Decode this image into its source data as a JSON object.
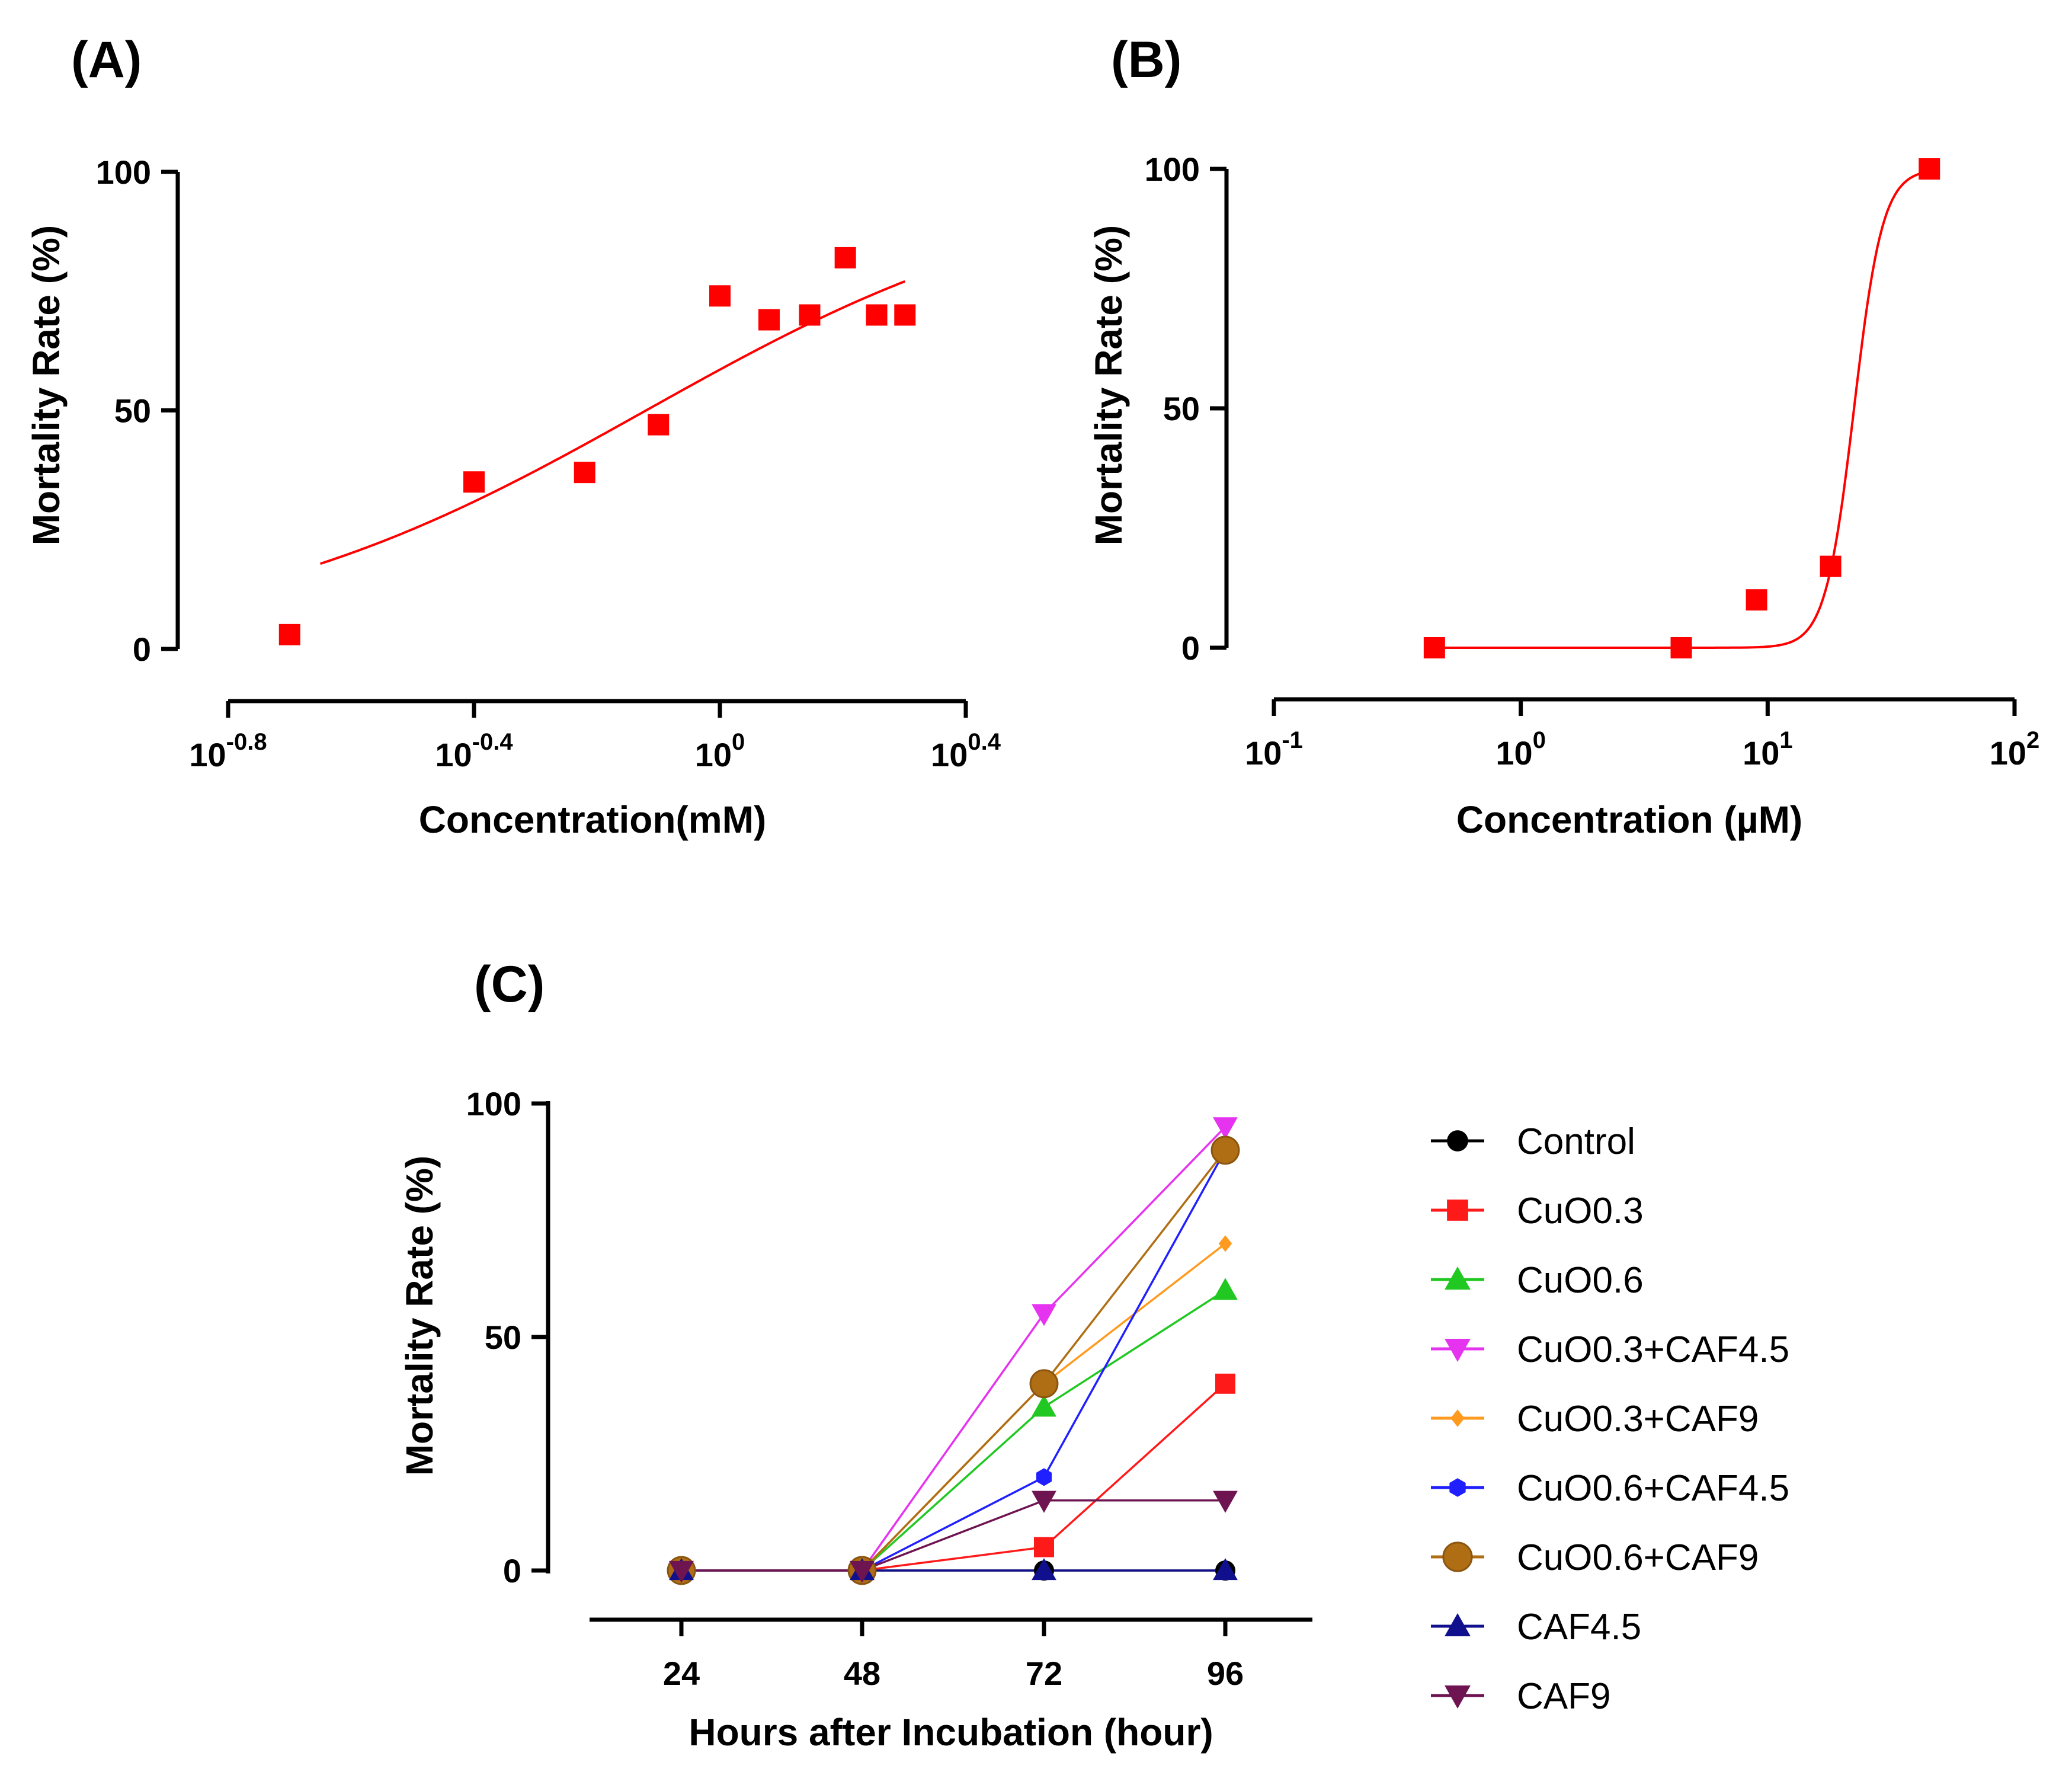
{
  "panels": [
    {
      "label": "(A)",
      "ylabel": "Mortality Rate (%)",
      "xlabel": "Concentration(mM)",
      "xscale": "log10",
      "xlim_log": [
        -0.8,
        0.4
      ],
      "ylim": [
        0,
        100
      ],
      "y_ticks": [
        {
          "value": 0,
          "label": "0"
        },
        {
          "value": 50,
          "label": "50"
        },
        {
          "value": 100,
          "label": "100"
        }
      ],
      "x_ticks": [
        {
          "exp": -0.8,
          "base": "10",
          "sup": "-0.8"
        },
        {
          "exp": -0.4,
          "base": "10",
          "sup": "-0.4"
        },
        {
          "exp": 0,
          "base": "10",
          "sup": "0"
        },
        {
          "exp": 0.4,
          "base": "10",
          "sup": "0.4"
        }
      ],
      "color": "#ff0000",
      "points_log_x": [
        {
          "x": -0.7,
          "y": 3
        },
        {
          "x": -0.4,
          "y": 35
        },
        {
          "x": -0.22,
          "y": 37
        },
        {
          "x": -0.1,
          "y": 47
        },
        {
          "x": 0.0,
          "y": 74
        },
        {
          "x": 0.08,
          "y": 69
        },
        {
          "x": 0.146,
          "y": 70
        },
        {
          "x": 0.204,
          "y": 82
        },
        {
          "x": 0.255,
          "y": 70
        },
        {
          "x": 0.301,
          "y": 70
        }
      ],
      "fit": {
        "type": "logistic",
        "bottom": 0,
        "top": 100,
        "log_ec50": -0.12,
        "hill": 1.25,
        "x_from": -0.65,
        "x_to": 0.301
      }
    },
    {
      "label": "(B)",
      "ylabel": "Mortality Rate (%)",
      "xlabel": "Concentration (µM)",
      "xscale": "log10",
      "xlim_log": [
        -1,
        2
      ],
      "ylim": [
        0,
        100
      ],
      "y_ticks": [
        {
          "value": 0,
          "label": "0"
        },
        {
          "value": 50,
          "label": "50"
        },
        {
          "value": 100,
          "label": "100"
        }
      ],
      "x_ticks": [
        {
          "exp": -1,
          "base": "10",
          "sup": "-1"
        },
        {
          "exp": 0,
          "base": "10",
          "sup": "0"
        },
        {
          "exp": 1,
          "base": "10",
          "sup": "1"
        },
        {
          "exp": 2,
          "base": "10",
          "sup": "2"
        }
      ],
      "color": "#ff0000",
      "points_log_x": [
        {
          "x": -0.35,
          "y": 0
        },
        {
          "x": 0.65,
          "y": 0
        },
        {
          "x": 0.955,
          "y": 10
        },
        {
          "x": 1.255,
          "y": 17
        },
        {
          "x": 1.655,
          "y": 100
        }
      ],
      "fit": {
        "type": "logistic",
        "bottom": 0,
        "top": 100,
        "log_ec50": 1.35,
        "hill": 7.5,
        "x_from": -0.35,
        "x_to": 1.655
      }
    },
    {
      "label": "(C)",
      "ylabel": "Mortality Rate (%)",
      "xlabel": "Hours after Incubation (hour)",
      "categories": [
        "24",
        "48",
        "72",
        "96"
      ],
      "ylim": [
        0,
        100
      ],
      "y_ticks": [
        {
          "value": 0,
          "label": "0"
        },
        {
          "value": 50,
          "label": "50"
        },
        {
          "value": 100,
          "label": "100"
        }
      ]
    }
  ],
  "chart_data": [
    {
      "type": "scatter",
      "title": "(A)",
      "xlabel": "Concentration(mM)",
      "ylabel": "Mortality Rate (%)",
      "x_scale": "log",
      "x": [
        0.2,
        0.4,
        0.6,
        0.8,
        1.0,
        1.2,
        1.4,
        1.6,
        1.8,
        2.0
      ],
      "y": [
        3,
        35,
        37,
        47,
        74,
        69,
        70,
        82,
        70,
        70
      ],
      "ylim": [
        0,
        100
      ],
      "fit": "sigmoidal dose-response curve"
    },
    {
      "type": "scatter",
      "title": "(B)",
      "xlabel": "Concentration (µM)",
      "ylabel": "Mortality Rate (%)",
      "x_scale": "log",
      "x": [
        0.45,
        4.5,
        9,
        18,
        45
      ],
      "y": [
        0,
        0,
        10,
        17,
        100
      ],
      "ylim": [
        0,
        100
      ],
      "fit": "sigmoidal dose-response curve"
    },
    {
      "type": "line",
      "title": "(C)",
      "xlabel": "Hours after Incubation (hour)",
      "ylabel": "Mortality Rate (%)",
      "categories": [
        "24",
        "48",
        "72",
        "96"
      ],
      "ylim": [
        0,
        100
      ],
      "series": [
        {
          "name": "Control",
          "values": [
            0,
            0,
            0,
            0
          ],
          "color": "#000000",
          "marker": "circle"
        },
        {
          "name": "CuO0.3",
          "values": [
            0,
            0,
            5,
            40
          ],
          "color": "#ff1a1a",
          "marker": "square"
        },
        {
          "name": "CuO0.6",
          "values": [
            0,
            0,
            35,
            60
          ],
          "color": "#22c822",
          "marker": "triangle-up"
        },
        {
          "name": "CuO0.3+CAF4.5",
          "values": [
            0,
            0,
            55,
            95
          ],
          "color": "#e633f0",
          "marker": "triangle-down"
        },
        {
          "name": "CuO0.3+CAF9",
          "values": [
            0,
            0,
            40,
            70
          ],
          "color": "#ff9a1f",
          "marker": "diamond"
        },
        {
          "name": "CuO0.6+CAF4.5",
          "values": [
            0,
            0,
            20,
            90
          ],
          "color": "#1f1fff",
          "marker": "hexagon"
        },
        {
          "name": "CuO0.6+CAF9",
          "values": [
            0,
            0,
            40,
            90
          ],
          "color": "#b06e14",
          "marker": "big-circle"
        },
        {
          "name": "CAF4.5",
          "values": [
            0,
            0,
            0,
            0
          ],
          "color": "#10108f",
          "marker": "triangle-up"
        },
        {
          "name": "CAF9",
          "values": [
            0,
            0,
            15,
            15
          ],
          "color": "#6e1450",
          "marker": "triangle-down"
        }
      ]
    }
  ]
}
